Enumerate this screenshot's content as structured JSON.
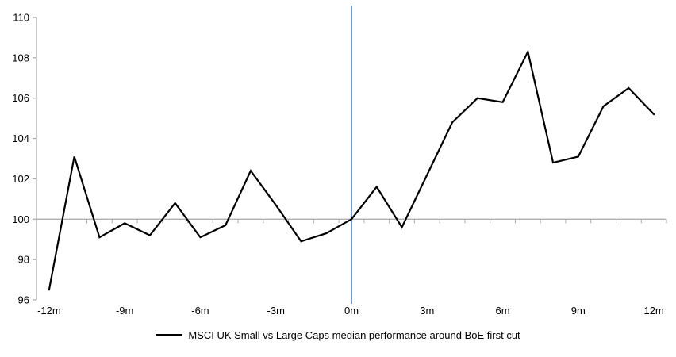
{
  "chart_data": {
    "type": "line",
    "title": "",
    "x": [
      -12,
      -11,
      -10,
      -9,
      -8,
      -7,
      -6,
      -5,
      -4,
      -3,
      -2,
      -1,
      0,
      1,
      2,
      3,
      4,
      5,
      6,
      7,
      8,
      9,
      10,
      11,
      12
    ],
    "series": [
      {
        "name": "MSCI UK Small vs Large Caps median performance around BoE first cut",
        "color": "#000000",
        "values": [
          96.5,
          103.1,
          99.1,
          99.8,
          99.2,
          100.8,
          99.1,
          99.7,
          102.4,
          100.7,
          98.9,
          99.3,
          100.0,
          101.6,
          99.6,
          102.2,
          104.8,
          106.0,
          105.8,
          108.3,
          102.8,
          103.1,
          105.6,
          106.5,
          105.2
        ]
      }
    ],
    "x_tick_positions": [
      -12,
      -9,
      -6,
      -3,
      0,
      3,
      6,
      9,
      12
    ],
    "x_tick_labels": [
      "-12m",
      "-9m",
      "-6m",
      "-3m",
      "0m",
      "3m",
      "6m",
      "9m",
      "12m"
    ],
    "y_ticks": [
      96,
      98,
      100,
      102,
      104,
      106,
      108,
      110
    ],
    "ylim": [
      96,
      110
    ],
    "baseline_value": 100,
    "event_line_x": 0,
    "event_line_color": "#4f81bd",
    "axis_color": "#a6a6a6",
    "baseline_color": "#a6a6a6",
    "grid": "off",
    "legend_position": "bottom"
  }
}
